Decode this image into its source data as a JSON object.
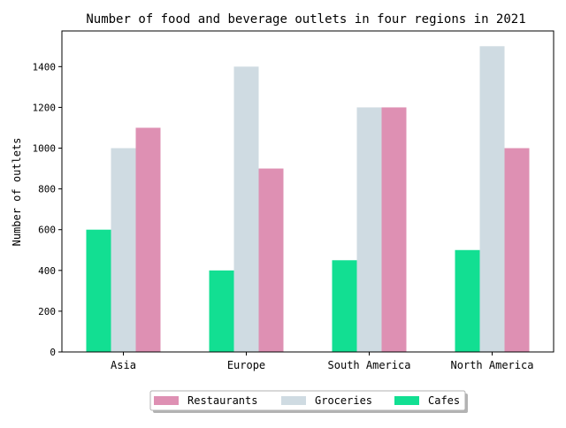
{
  "chart_data": {
    "type": "bar",
    "title": "Number of food and beverage outlets in four regions in 2021",
    "xlabel": "",
    "ylabel": "Number of outlets",
    "categories": [
      "Asia",
      "Europe",
      "South America",
      "North America"
    ],
    "ylim": [
      0,
      1575
    ],
    "yticks": [
      0,
      200,
      400,
      600,
      800,
      1000,
      1200,
      1400
    ],
    "grid": false,
    "legend_position": "bottom-center",
    "series": [
      {
        "name": "Cafes",
        "color": "#12df92",
        "values": [
          600,
          400,
          450,
          500
        ]
      },
      {
        "name": "Groceries",
        "color": "#cfdbe2",
        "values": [
          1000,
          1400,
          1200,
          1500
        ]
      },
      {
        "name": "Restaurants",
        "color": "#de90b3",
        "values": [
          1100,
          900,
          1200,
          1000
        ]
      }
    ],
    "legend_order": [
      "Restaurants",
      "Groceries",
      "Cafes"
    ]
  }
}
